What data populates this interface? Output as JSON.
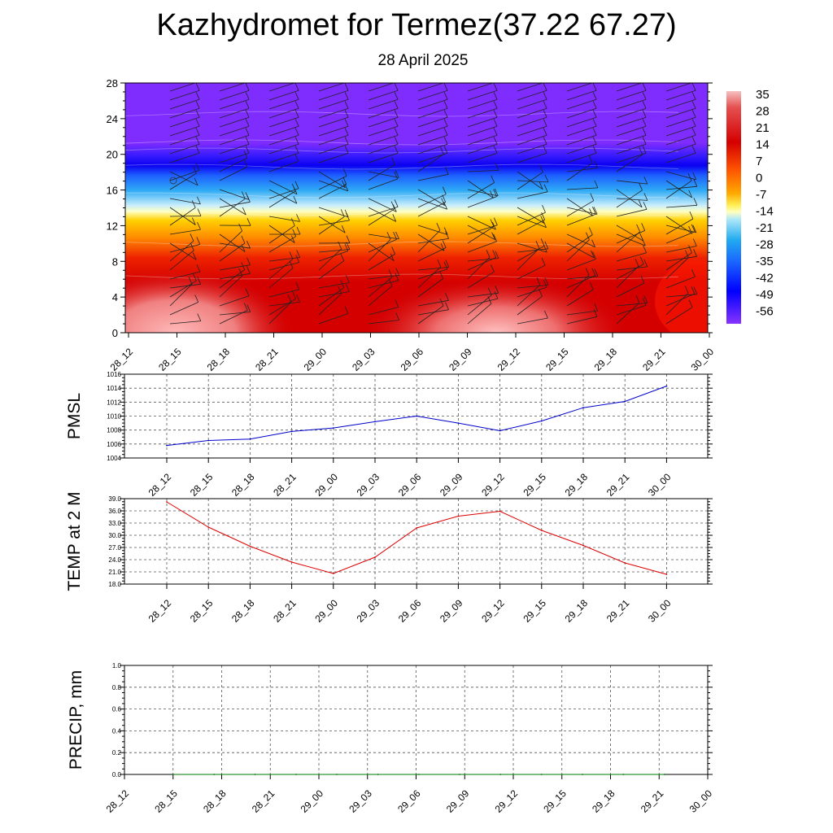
{
  "title": "Kazhydromet for Termez(37.22 67.27)",
  "subtitle": "28 April 2025",
  "chart_data": [
    {
      "type": "heatmap",
      "ylim": [
        0,
        28
      ],
      "yticks": [
        "0",
        "4",
        "8",
        "12",
        "16",
        "20",
        "24",
        "28"
      ],
      "times": [
        "28_12",
        "28_15",
        "28_18",
        "28_21",
        "29_00",
        "29_03",
        "29_06",
        "29_09",
        "29_12",
        "29_15",
        "29_18",
        "29_21",
        "30_00"
      ],
      "colorbar_labels": [
        "35",
        "28",
        "21",
        "14",
        "7",
        "0",
        "-7",
        "-14",
        "-21",
        "-28",
        "-35",
        "-42",
        "-49",
        "-56"
      ],
      "grid": false,
      "legend": "right"
    },
    {
      "type": "line",
      "ylabel": "PMSL",
      "ylim": [
        1004,
        1016
      ],
      "yticks": [
        "1004",
        "1006",
        "1008",
        "1010",
        "1012",
        "1014",
        "1016"
      ],
      "x": [
        "28_12",
        "28_15",
        "28_18",
        "28_21",
        "29_00",
        "29_03",
        "29_06",
        "29_09",
        "29_12",
        "29_15",
        "29_18",
        "29_21",
        "30_00"
      ],
      "values": [
        1005.8,
        1006.5,
        1006.7,
        1007.8,
        1008.3,
        1009.2,
        1010.0,
        1009.0,
        1007.9,
        1009.3,
        1011.2,
        1012.1,
        1014.3
      ],
      "color": "#0000cc",
      "grid": true
    },
    {
      "type": "line",
      "ylabel": "TEMP at 2 M",
      "ylim": [
        18.0,
        39.0
      ],
      "yticks": [
        "18.0",
        "21.0",
        "24.0",
        "27.0",
        "30.0",
        "33.0",
        "36.0",
        "39.0"
      ],
      "x": [
        "28_12",
        "28_15",
        "28_18",
        "28_21",
        "29_00",
        "29_03",
        "29_06",
        "29_09",
        "29_12",
        "29_15",
        "29_18",
        "29_21",
        "30_00"
      ],
      "values": [
        38.2,
        32.0,
        27.3,
        23.4,
        20.6,
        24.6,
        31.8,
        34.7,
        35.9,
        31.2,
        27.5,
        23.2,
        20.4
      ],
      "color": "#dd0000",
      "grid": true
    },
    {
      "type": "line",
      "ylabel": "PRECIP, mm",
      "ylim": [
        0.0,
        1.0
      ],
      "yticks": [
        "0.0",
        "0.2",
        "0.4",
        "0.6",
        "0.8",
        "1.0"
      ],
      "x": [
        "28_12",
        "28_15",
        "28_18",
        "28_21",
        "29_00",
        "29_03",
        "29_06",
        "29_09",
        "29_12",
        "29_15",
        "29_18",
        "29_21",
        "30_00"
      ],
      "values": [
        0,
        0,
        0,
        0,
        0,
        0,
        0,
        0,
        0,
        0,
        0,
        0,
        0
      ],
      "color": "#007700",
      "grid": true
    }
  ]
}
